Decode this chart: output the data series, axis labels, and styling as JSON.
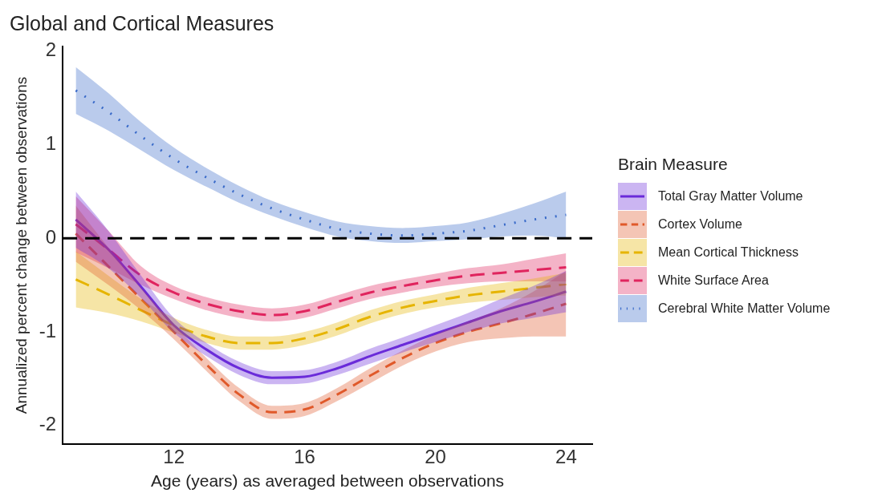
{
  "chart_data": {
    "type": "line",
    "title": "Global and Cortical Measures",
    "xlabel": "Age (years) as averaged between observations",
    "ylabel": "Annualized percent change between observations",
    "legend_title": "Brain Measure",
    "legend": "right",
    "grid": false,
    "marker": "none",
    "xlim": [
      8.6,
      24.8
    ],
    "xticks": [
      12,
      16,
      20,
      24
    ],
    "ylim": [
      -2.2,
      2.05
    ],
    "yticks": [
      -2,
      -1,
      0,
      1,
      2
    ],
    "x": [
      9,
      10,
      11,
      12,
      13,
      14,
      15,
      16,
      17,
      18,
      19,
      20,
      21,
      22,
      23,
      24
    ],
    "series": [
      {
        "name": "Total Gray Matter Volume",
        "color": "#6a2bd9",
        "line_style": "solid",
        "values": [
          0.2,
          -0.12,
          -0.52,
          -0.93,
          -1.19,
          -1.39,
          -1.49,
          -1.48,
          -1.39,
          -1.26,
          -1.14,
          -1.02,
          -0.9,
          -0.78,
          -0.68,
          -0.57
        ],
        "lower": [
          -0.1,
          -0.32,
          -0.64,
          -1.01,
          -1.26,
          -1.46,
          -1.56,
          -1.55,
          -1.46,
          -1.34,
          -1.22,
          -1.11,
          -1.0,
          -0.91,
          -0.85,
          -0.79
        ],
        "upper": [
          0.5,
          0.08,
          -0.4,
          -0.85,
          -1.12,
          -1.32,
          -1.42,
          -1.41,
          -1.32,
          -1.18,
          -1.06,
          -0.93,
          -0.8,
          -0.65,
          -0.51,
          -0.35
        ]
      },
      {
        "name": "Cortex Volume",
        "color": "#e0592a",
        "line_style": "dashed",
        "values": [
          0.05,
          -0.3,
          -0.65,
          -1.0,
          -1.35,
          -1.67,
          -1.86,
          -1.83,
          -1.67,
          -1.47,
          -1.28,
          -1.12,
          -1.0,
          -0.91,
          -0.81,
          -0.7
        ],
        "lower": [
          -0.25,
          -0.5,
          -0.77,
          -1.08,
          -1.42,
          -1.74,
          -1.93,
          -1.9,
          -1.74,
          -1.55,
          -1.36,
          -1.21,
          -1.11,
          -1.07,
          -1.05,
          -1.05
        ],
        "upper": [
          0.35,
          -0.1,
          -0.53,
          -0.92,
          -1.28,
          -1.6,
          -1.79,
          -1.76,
          -1.6,
          -1.39,
          -1.2,
          -1.03,
          -0.89,
          -0.75,
          -0.57,
          -0.35
        ]
      },
      {
        "name": "Mean Cortical Thickness",
        "color": "#e6b400",
        "line_style": "dashed",
        "values": [
          -0.44,
          -0.6,
          -0.77,
          -0.93,
          -1.05,
          -1.12,
          -1.12,
          -1.07,
          -0.97,
          -0.84,
          -0.74,
          -0.67,
          -0.61,
          -0.57,
          -0.53,
          -0.49
        ],
        "lower": [
          -0.74,
          -0.8,
          -0.89,
          -1.01,
          -1.12,
          -1.19,
          -1.19,
          -1.14,
          -1.04,
          -0.91,
          -0.81,
          -0.74,
          -0.69,
          -0.66,
          -0.63,
          -0.61
        ],
        "upper": [
          -0.14,
          -0.4,
          -0.65,
          -0.85,
          -0.98,
          -1.05,
          -1.05,
          -1.0,
          -0.9,
          -0.77,
          -0.67,
          -0.6,
          -0.53,
          -0.48,
          -0.43,
          -0.37
        ]
      },
      {
        "name": "White Surface Area",
        "color": "#e0245e",
        "line_style": "dashed",
        "values": [
          0.15,
          -0.12,
          -0.4,
          -0.58,
          -0.7,
          -0.78,
          -0.82,
          -0.78,
          -0.68,
          -0.58,
          -0.51,
          -0.45,
          -0.4,
          -0.37,
          -0.34,
          -0.31
        ],
        "lower": [
          -0.15,
          -0.32,
          -0.5,
          -0.65,
          -0.77,
          -0.85,
          -0.89,
          -0.85,
          -0.75,
          -0.65,
          -0.58,
          -0.52,
          -0.48,
          -0.46,
          -0.46,
          -0.46
        ],
        "upper": [
          0.45,
          0.08,
          -0.3,
          -0.51,
          -0.63,
          -0.71,
          -0.75,
          -0.71,
          -0.61,
          -0.51,
          -0.44,
          -0.38,
          -0.32,
          -0.28,
          -0.22,
          -0.16
        ]
      },
      {
        "name": "Cerebral White Matter Volume",
        "color": "#3a6bc9",
        "line_style": "dotted",
        "values": [
          1.58,
          1.35,
          1.09,
          0.85,
          0.65,
          0.47,
          0.32,
          0.2,
          0.1,
          0.05,
          0.03,
          0.05,
          0.08,
          0.14,
          0.2,
          0.25
        ],
        "lower": [
          1.33,
          1.15,
          0.94,
          0.73,
          0.55,
          0.38,
          0.24,
          0.12,
          0.02,
          -0.03,
          -0.05,
          -0.03,
          -0.01,
          0.02,
          0.03,
          0.0
        ],
        "upper": [
          1.83,
          1.55,
          1.24,
          0.97,
          0.75,
          0.56,
          0.4,
          0.28,
          0.18,
          0.13,
          0.11,
          0.13,
          0.17,
          0.26,
          0.37,
          0.5
        ]
      }
    ],
    "ref_lines": [
      {
        "axis": "y",
        "value": 0,
        "color": "#000000",
        "line_style": "dashed"
      }
    ]
  }
}
